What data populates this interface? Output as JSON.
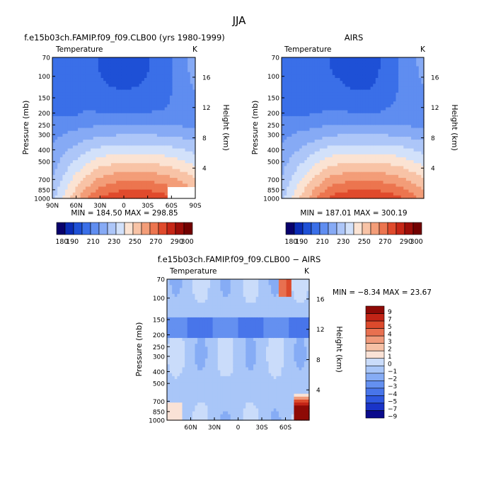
{
  "page_title": "JJA",
  "panel_labels": {
    "top_left_title": "f.e15b03ch.FAMIP.f09_f09.CLB00 (yrs 1980-1999)",
    "top_right_title": "AIRS",
    "bottom_title": "f.e15b03ch.FAMIP.f09_f09.CLB00 − AIRS",
    "variable": "Temperature",
    "unit": "K",
    "ylabel_left": "Pressure (mb)",
    "ylabel_right": "Height (km)",
    "stats_top_left": "MIN = 184.50   MAX = 298.85",
    "stats_top_right": "MIN = 187.01   MAX = 300.19",
    "stats_bottom": "MIN = −8.34   MAX = 23.67"
  },
  "colors": {
    "abs_scale": [
      "#08006b",
      "#0a2bb5",
      "#1e50d6",
      "#3a6fe8",
      "#5f8df0",
      "#86aaf5",
      "#adc6f8",
      "#d2e1fa",
      "#fbe3d3",
      "#f8c3a6",
      "#f39d78",
      "#ec754f",
      "#e04a2c",
      "#c62616",
      "#9c0d08",
      "#720000"
    ],
    "diff_scale": [
      "#0a0a8c",
      "#1a34c8",
      "#2f58e0",
      "#4875ea",
      "#6490f0",
      "#86acf5",
      "#a9c6f8",
      "#cadcfa",
      "#fae2d6",
      "#f6c1a6",
      "#f09a7b",
      "#e87050",
      "#dc4a2c",
      "#c22416",
      "#8e0a06"
    ]
  },
  "chart_data": [
    {
      "type": "heatmap",
      "title": "f.e15b03ch.FAMIP.f09_f09.CLB00 (yrs 1980-1999)",
      "subtitle": "Temperature",
      "unit": "K",
      "xlabel": "",
      "ylabel": "Pressure (mb)",
      "ylabel_right": "Height (km)",
      "x_ticks": [
        "90N",
        "60N",
        "30N",
        "0",
        "30S",
        "60S",
        "90S"
      ],
      "y_ticks": [
        70,
        100,
        150,
        200,
        250,
        300,
        400,
        500,
        700,
        850,
        1000
      ],
      "y_right_ticks": [
        4,
        8,
        12,
        16
      ],
      "min": 184.5,
      "max": 298.85,
      "levels": [
        180,
        190,
        200,
        210,
        220,
        230,
        240,
        250,
        260,
        270,
        280,
        290,
        300
      ],
      "colorbar_ticks": [
        180,
        190,
        210,
        230,
        250,
        270,
        290,
        300
      ]
    },
    {
      "type": "heatmap",
      "title": "AIRS",
      "subtitle": "Temperature",
      "unit": "K",
      "xlabel": "",
      "ylabel": "Pressure (mb)",
      "ylabel_right": "Height (km)",
      "x_ticks": [],
      "y_ticks": [
        70,
        100,
        150,
        200,
        250,
        300,
        400,
        500,
        700,
        850,
        1000
      ],
      "y_right_ticks": [
        4,
        8,
        12,
        16
      ],
      "min": 187.01,
      "max": 300.19,
      "levels": [
        180,
        190,
        200,
        210,
        220,
        230,
        240,
        250,
        260,
        270,
        280,
        290,
        300
      ],
      "colorbar_ticks": [
        180,
        190,
        210,
        230,
        250,
        270,
        290,
        300
      ]
    },
    {
      "type": "heatmap",
      "title": "f.e15b03ch.FAMIP.f09_f09.CLB00 − AIRS",
      "subtitle": "Temperature",
      "unit": "K",
      "xlabel": "",
      "ylabel": "Pressure (mb)",
      "ylabel_right": "Height (km)",
      "x_ticks": [
        "60N",
        "30N",
        "0",
        "30S",
        "60S"
      ],
      "y_ticks": [
        70,
        100,
        150,
        200,
        250,
        300,
        400,
        500,
        700,
        850,
        1000
      ],
      "y_right_ticks": [
        4,
        8,
        12,
        16
      ],
      "min": -8.34,
      "max": 23.67,
      "levels": [
        -9,
        -7,
        -5,
        -4,
        -3,
        -2,
        -1,
        0,
        1,
        2,
        3,
        4,
        5,
        7,
        9
      ],
      "colorbar_ticks": [
        9,
        7,
        5,
        4,
        3,
        2,
        1,
        0,
        -1,
        -2,
        -3,
        -4,
        -5,
        -7,
        -9
      ]
    }
  ]
}
